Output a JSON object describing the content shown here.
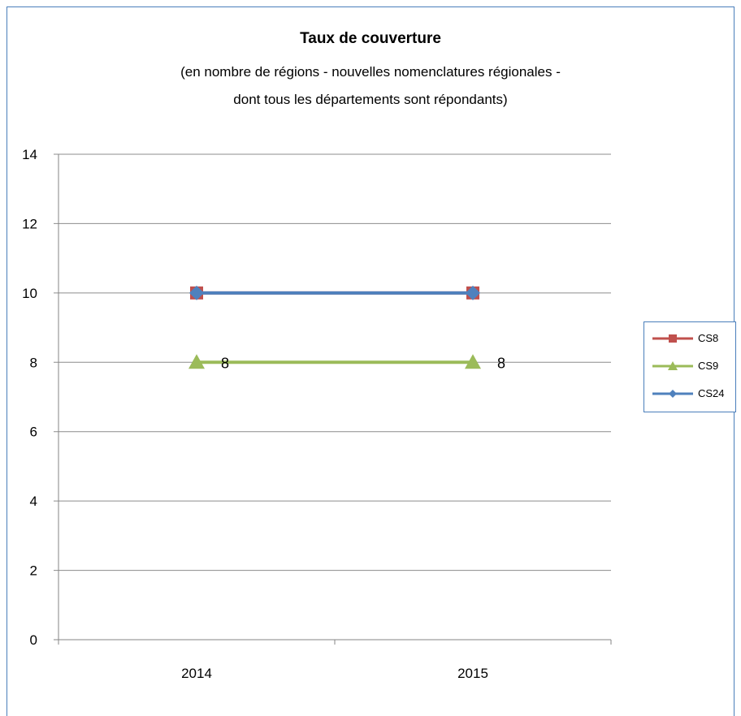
{
  "chart_data": {
    "type": "line",
    "title": "Taux de couverture",
    "subtitle_lines": [
      "(en nombre de régions  - nouvelles nomenclatures régionales -",
      "dont tous les départements sont répondants)"
    ],
    "categories": [
      "2014",
      "2015"
    ],
    "ylim": [
      0,
      14
    ],
    "yticks": [
      "0",
      "2",
      "4",
      "6",
      "8",
      "10",
      "12",
      "14"
    ],
    "grid": true,
    "legend_position": "right",
    "series": [
      {
        "name": "CS8",
        "values": [
          10,
          10
        ],
        "color": "#c0504d",
        "marker": "square",
        "labels": []
      },
      {
        "name": "CS9",
        "values": [
          8,
          8
        ],
        "color": "#9bbb59",
        "marker": "triangle",
        "labels": [
          "8",
          "8"
        ]
      },
      {
        "name": "CS24",
        "values": [
          10,
          10
        ],
        "color": "#4f81bd",
        "marker": "diamond",
        "labels": []
      }
    ]
  }
}
